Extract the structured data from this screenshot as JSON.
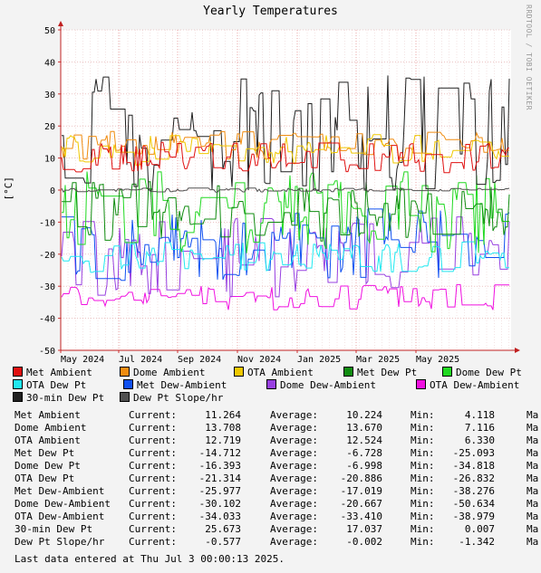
{
  "chart_data": {
    "type": "line",
    "title": "Yearly Temperatures",
    "ylabel": "[°C]",
    "ylim": [
      -50,
      50
    ],
    "yticks": [
      50,
      40,
      30,
      20,
      10,
      0,
      -10,
      -20,
      -30,
      -40,
      -50
    ],
    "xticks": [
      "May 2024",
      "Jul 2024",
      "Sep 2024",
      "Nov 2024",
      "Jan 2025",
      "Mar 2025",
      "May 2025"
    ],
    "grid": true,
    "legend_position": "bottom",
    "series": [
      {
        "name": "Met Ambient",
        "color": "#e01010",
        "current": 11.264,
        "average": 10.224,
        "min": 4.118
      },
      {
        "name": "Dome Ambient",
        "color": "#f08c10",
        "current": 13.708,
        "average": 13.67,
        "min": 7.116
      },
      {
        "name": "OTA Ambient",
        "color": "#f0c800",
        "current": 12.719,
        "average": 12.524,
        "min": 6.33
      },
      {
        "name": "Met Dew Pt",
        "color": "#108c10",
        "current": -14.712,
        "average": -6.728,
        "min": -25.093
      },
      {
        "name": "Dome Dew Pt",
        "color": "#20d820",
        "current": -16.393,
        "average": -6.998,
        "min": -34.818
      },
      {
        "name": "OTA Dew Pt",
        "color": "#20e8f0",
        "current": -21.314,
        "average": -20.886,
        "min": -26.832
      },
      {
        "name": "Met Dew-Ambient",
        "color": "#1050f0",
        "current": -25.977,
        "average": -17.019,
        "min": -38.276
      },
      {
        "name": "Dome Dew-Ambient",
        "color": "#9840e0",
        "current": -30.102,
        "average": -20.667,
        "min": -50.634
      },
      {
        "name": "OTA Dew-Ambient",
        "color": "#f010e0",
        "current": -34.033,
        "average": -33.41,
        "min": -38.979
      },
      {
        "name": "30-min Dew Pt",
        "color": "#202020",
        "current": 25.673,
        "average": 17.037,
        "min": 0.007
      },
      {
        "name": "Dew Pt Slope/hr",
        "color": "#505050",
        "current": -0.577,
        "average": -0.002,
        "min": -1.342
      }
    ]
  },
  "side_text": "RRDTOOL / TOBI OETIKER",
  "labels": {
    "current": "Current:",
    "average": "Average:",
    "min": "Min:",
    "max": "Ma"
  },
  "footer": "Last data entered at Thu Jul  3 00:00:13 2025."
}
